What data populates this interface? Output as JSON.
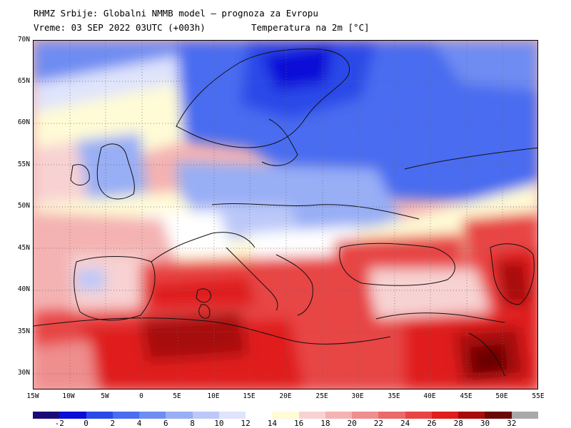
{
  "header": {
    "line1": "RHMZ Srbije: Globalni NMMB model — prognoza za Evropu",
    "line2_time": "Vreme: 03 SEP 2022 03UTC (+003h)",
    "line2_var": "Temperatura na 2m [°C]"
  },
  "map": {
    "lat_labels": [
      "70N",
      "65N",
      "60N",
      "55N",
      "50N",
      "45N",
      "40N",
      "35N",
      "30N"
    ],
    "lon_labels": [
      "15W",
      "10W",
      "5W",
      "0",
      "5E",
      "10E",
      "15E",
      "20E",
      "25E",
      "30E",
      "35E",
      "40E",
      "45E",
      "50E",
      "55E"
    ],
    "extent": {
      "lon_min": -15,
      "lon_max": 55,
      "lat_min": 28,
      "lat_max": 70
    },
    "gridlines": "dotted"
  },
  "legend": {
    "labels": [
      "-2",
      "0",
      "2",
      "4",
      "6",
      "8",
      "10",
      "12",
      "14",
      "16",
      "18",
      "20",
      "22",
      "24",
      "26",
      "28",
      "30",
      "32"
    ],
    "colors": [
      "#1a0a78",
      "#0c0cd8",
      "#2a4ae8",
      "#4a6cf0",
      "#6e8cf2",
      "#98aef5",
      "#bcc8f8",
      "#dfe4fb",
      "#ffffff",
      "#fffbd6",
      "#f8d2d2",
      "#f4b2b2",
      "#ef8e8e",
      "#ea6a6a",
      "#e84444",
      "#e01e1e",
      "#a80c0c",
      "#6a0606",
      "#a8a8a8"
    ]
  }
}
